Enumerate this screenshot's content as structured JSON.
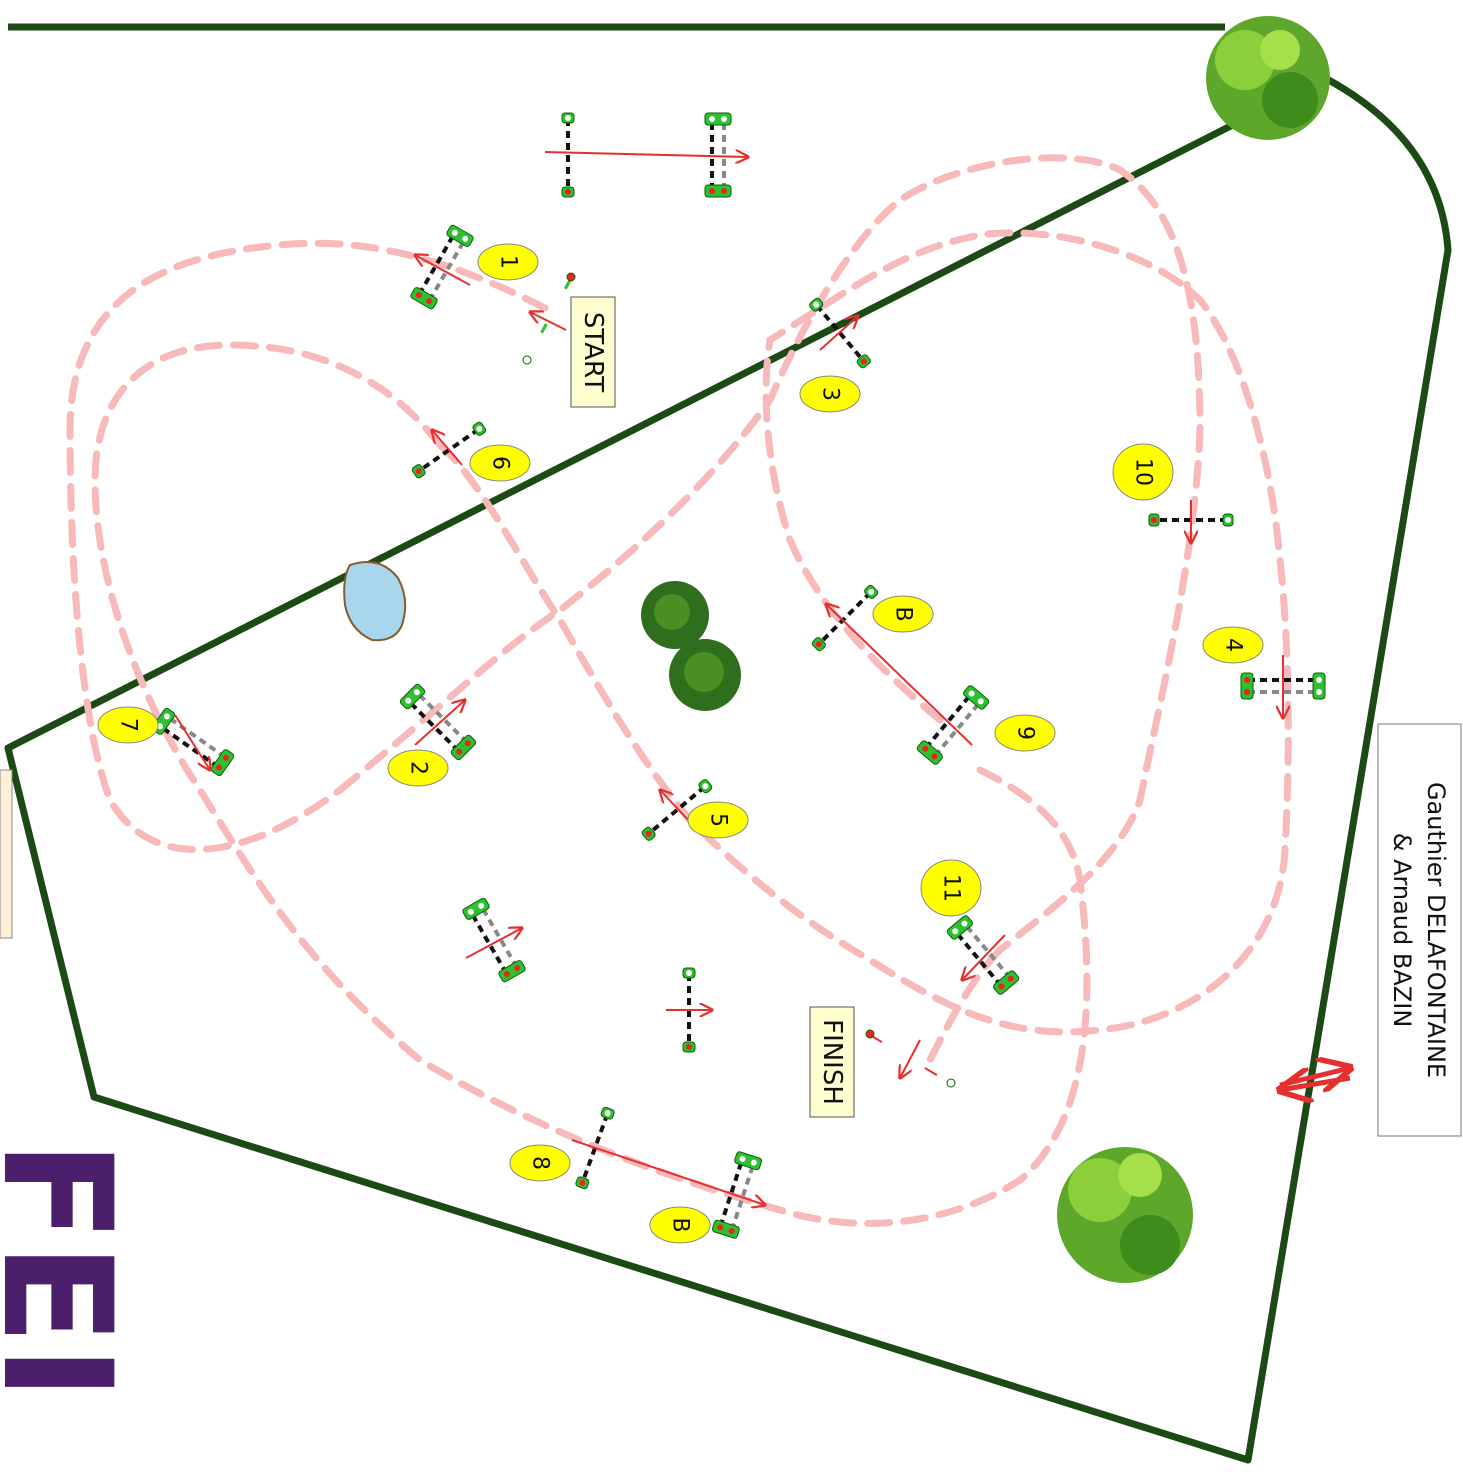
{
  "course": {
    "start_label": "START",
    "finish_label": "FINISH",
    "designer_line1": "Gauthier DELAFONTAINE",
    "designer_line2": "& Arnaud BAZIN",
    "logo_text": "FEI",
    "colors": {
      "arena_border": "#1b4a14",
      "path": "#f7b9b9",
      "arrow": "#e53030",
      "badge_fill": "#ffff00",
      "label_box": "#ffffd0",
      "water": "#a8d6ec",
      "logo": "#4b1f6b"
    }
  },
  "numbers": {
    "n1": "1",
    "n2": "2",
    "n3": "3",
    "n4": "4",
    "n5": "5",
    "n6": "6",
    "n7": "7",
    "n8": "8",
    "n9": "9",
    "n10": "10",
    "n11": "11",
    "b1": "B",
    "b2": "B"
  }
}
